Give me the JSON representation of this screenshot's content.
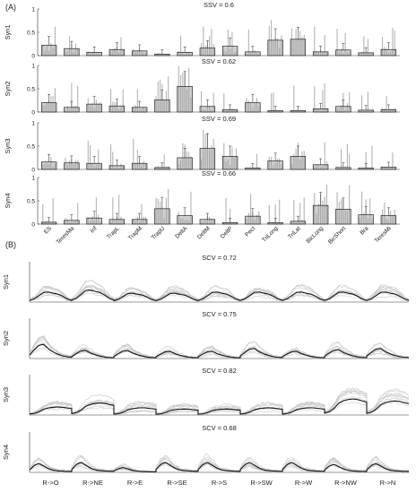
{
  "chart_data": [
    {
      "type": "bar",
      "panel_label": "(A)",
      "muscles": [
        "ES",
        "TeresMa",
        "Inf",
        "TrapL",
        "TrapM",
        "TrapU",
        "DeltA",
        "DeltM",
        "DeltP",
        "Pect",
        "TriLong",
        "TriLat",
        "BicLong",
        "BicShort",
        "Bra",
        "TeresMi"
      ],
      "ylim": [
        0,
        1
      ],
      "yticks": [
        "0",
        "0.5",
        "1"
      ],
      "subplots": [
        {
          "ylabel": "Syn1",
          "title": "SSV = 0.6",
          "values": [
            0.22,
            0.15,
            0.07,
            0.13,
            0.1,
            0.03,
            0.07,
            0.16,
            0.2,
            0.08,
            0.33,
            0.35,
            0.08,
            0.12,
            0.06,
            0.13
          ]
        },
        {
          "ylabel": "Syn2",
          "title": "SSV = 0.62",
          "values": [
            0.2,
            0.1,
            0.17,
            0.13,
            0.1,
            0.26,
            0.55,
            0.12,
            0.05,
            0.2,
            0.03,
            0.03,
            0.07,
            0.12,
            0.04,
            0.05
          ]
        },
        {
          "ylabel": "Syn3",
          "title": "SSV = 0.69",
          "values": [
            0.16,
            0.14,
            0.13,
            0.08,
            0.13,
            0.04,
            0.25,
            0.45,
            0.28,
            0.03,
            0.18,
            0.28,
            0.1,
            0.04,
            0.03,
            0.05
          ]
        },
        {
          "ylabel": "Syn4",
          "title": "SSV = 0.66",
          "values": [
            0.04,
            0.08,
            0.13,
            0.1,
            0.1,
            0.33,
            0.18,
            0.1,
            0.03,
            0.17,
            0.03,
            0.06,
            0.4,
            0.32,
            0.2,
            0.18
          ]
        }
      ]
    },
    {
      "type": "line",
      "panel_label": "(B)",
      "directions": [
        "R->O",
        "R->NE",
        "R->E",
        "R->SE",
        "R->S",
        "R->SW",
        "R->W",
        "R->NW",
        "R->N"
      ],
      "ylim": [
        0,
        1
      ],
      "subplots": [
        {
          "ylabel": "Syn1",
          "title": "SCV = 0.72",
          "peaks": [
            0.25,
            0.3,
            0.22,
            0.22,
            0.25,
            0.25,
            0.25,
            0.25,
            0.25
          ],
          "shape": [
            0.04,
            0.08,
            0.16,
            0.24,
            0.25,
            0.22,
            0.2,
            0.15,
            0.08,
            0.04
          ]
        },
        {
          "ylabel": "Syn2",
          "title": "SCV = 0.75",
          "peaks": [
            0.35,
            0.2,
            0.2,
            0.18,
            0.18,
            0.25,
            0.18,
            0.22,
            0.25
          ],
          "shape": [
            0.08,
            0.2,
            0.3,
            0.32,
            0.22,
            0.15,
            0.1,
            0.06,
            0.04,
            0.03
          ]
        },
        {
          "ylabel": "Syn3",
          "title": "SCV = 0.82",
          "peaks": [
            0.2,
            0.3,
            0.18,
            0.15,
            0.15,
            0.18,
            0.18,
            0.4,
            0.35
          ],
          "shape": [
            0.03,
            0.05,
            0.1,
            0.18,
            0.22,
            0.24,
            0.25,
            0.24,
            0.22,
            0.2
          ]
        },
        {
          "ylabel": "Syn4",
          "title": "SCV = 0.68",
          "peaks": [
            0.22,
            0.25,
            0.12,
            0.25,
            0.25,
            0.25,
            0.25,
            0.2,
            0.22
          ],
          "shape": [
            0.08,
            0.22,
            0.28,
            0.2,
            0.12,
            0.07,
            0.05,
            0.04,
            0.03,
            0.03
          ]
        }
      ]
    }
  ]
}
